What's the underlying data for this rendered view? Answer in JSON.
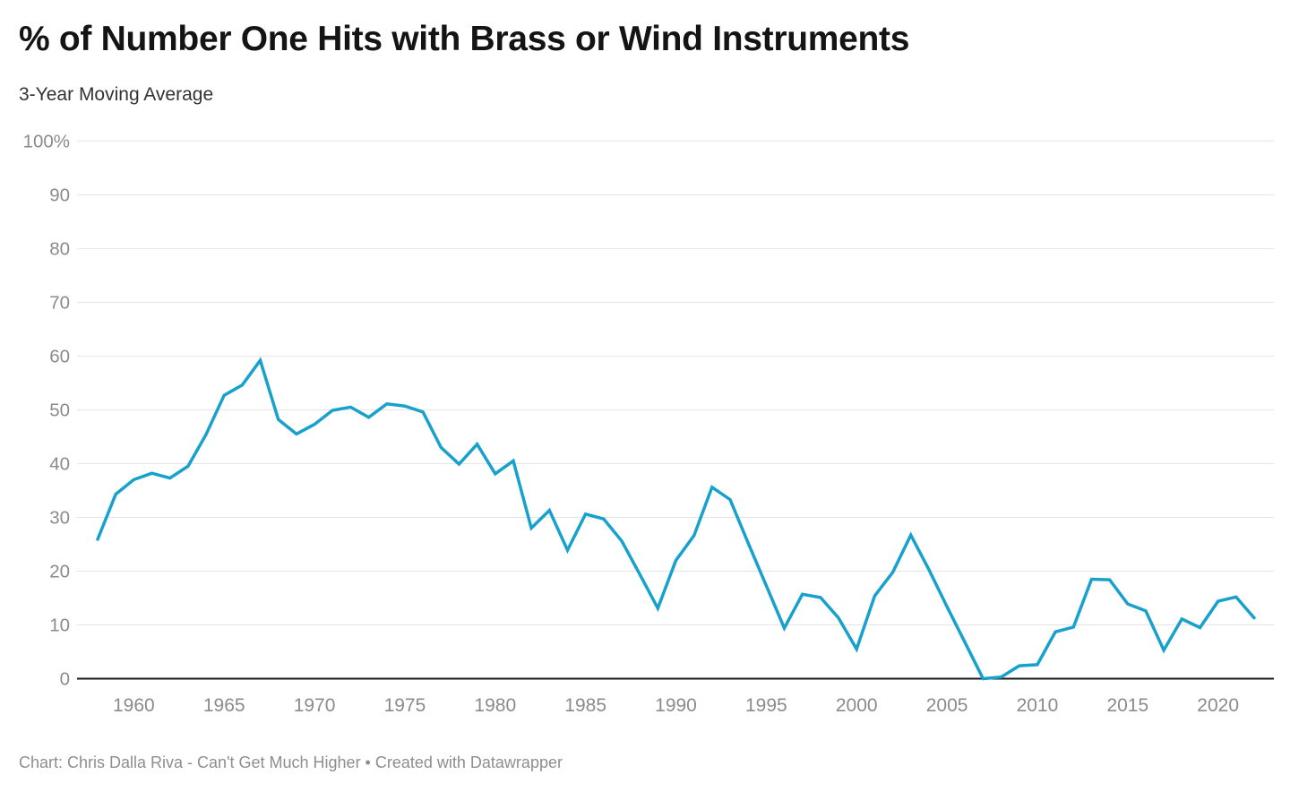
{
  "header": {
    "title": "% of Number One Hits with Brass or Wind Instruments",
    "subtitle": "3-Year Moving Average"
  },
  "footer": {
    "credit": "Chart: Chris Dalla Riva - Can't Get Much Higher • Created with Datawrapper"
  },
  "colors": {
    "line": "#18a1cd",
    "grid": "#e4e4e4",
    "baseline": "#1a1a1a",
    "axis_label": "#8b8b8b",
    "title": "#141414",
    "subtitle": "#333333",
    "footer": "#8e8e8e",
    "background": "#ffffff"
  },
  "chart_data": {
    "type": "line",
    "title": "% of Number One Hits with Brass or Wind Instruments",
    "subtitle": "3-Year Moving Average",
    "xlabel": "",
    "ylabel": "",
    "xlim": [
      1958,
      2022
    ],
    "ylim": [
      0,
      100
    ],
    "grid": "horizontal",
    "legend_position": "none",
    "x": [
      1958,
      1959,
      1960,
      1961,
      1962,
      1963,
      1964,
      1965,
      1966,
      1967,
      1968,
      1969,
      1970,
      1971,
      1972,
      1973,
      1974,
      1975,
      1976,
      1977,
      1978,
      1979,
      1980,
      1981,
      1982,
      1983,
      1984,
      1985,
      1986,
      1987,
      1988,
      1989,
      1990,
      1991,
      1992,
      1993,
      1994,
      1995,
      1996,
      1997,
      1998,
      1999,
      2000,
      2001,
      2002,
      2003,
      2004,
      2005,
      2006,
      2007,
      2008,
      2009,
      2010,
      2011,
      2012,
      2013,
      2014,
      2015,
      2016,
      2017,
      2018,
      2019,
      2020,
      2021,
      2022
    ],
    "series": [
      {
        "name": "% of Number One Hits with Brass or Wind Instruments (3-Year Moving Average)",
        "values": [
          25.9,
          34.3,
          37.0,
          38.2,
          37.3,
          39.5,
          45.4,
          52.7,
          54.6,
          59.2,
          48.2,
          45.5,
          47.3,
          49.9,
          50.5,
          48.6,
          51.1,
          50.7,
          49.6,
          43.0,
          39.9,
          43.6,
          38.1,
          40.5,
          28.0,
          31.3,
          23.9,
          30.6,
          29.7,
          25.6,
          19.4,
          13.1,
          22.0,
          26.6,
          35.6,
          33.3,
          25.2,
          17.3,
          9.4,
          15.7,
          15.1,
          11.3,
          5.5,
          15.4,
          19.8,
          26.7,
          20.3,
          13.4,
          6.7,
          0.0,
          0.3,
          2.4,
          2.6,
          8.7,
          9.6,
          18.5,
          18.4,
          13.9,
          12.6,
          5.3,
          11.1,
          9.5,
          14.4,
          15.2,
          11.3
        ]
      }
    ],
    "yticks": {
      "values": [
        0,
        10,
        20,
        30,
        40,
        50,
        60,
        70,
        80,
        90,
        100
      ],
      "labels": [
        "0",
        "10",
        "20",
        "30",
        "40",
        "50",
        "60",
        "70",
        "80",
        "90",
        "100%"
      ]
    },
    "xticks": {
      "values": [
        1960,
        1965,
        1970,
        1975,
        1980,
        1985,
        1990,
        1995,
        2000,
        2005,
        2010,
        2015,
        2020
      ],
      "labels": [
        "1960",
        "1965",
        "1970",
        "1975",
        "1980",
        "1985",
        "1990",
        "1995",
        "2000",
        "2005",
        "2010",
        "2015",
        "2020"
      ]
    }
  }
}
